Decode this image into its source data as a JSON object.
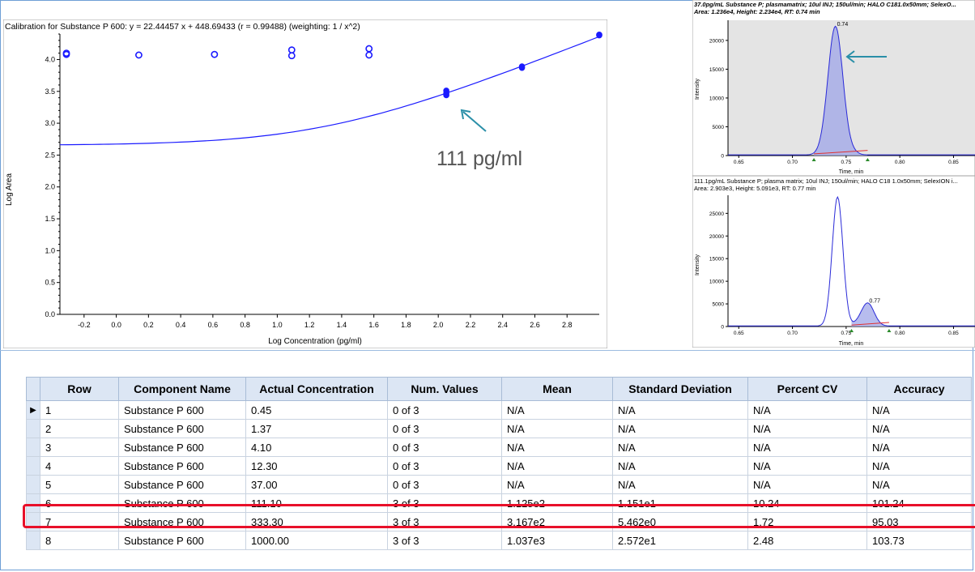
{
  "calibration": {
    "title": "Calibration for Substance P 600: y = 22.44457 x + 448.69433 (r = 0.99488)  (weighting: 1 / x^2)",
    "callout": "111 pg/ml"
  },
  "chromatogram_top": {
    "title": "37.0pg/mL Substance P; plasmamatrix; 10ul INJ; 150ul/min; HALO C181.0x50mm; SelexO...",
    "subtitle": "Area: 1.236e4, Height: 2.234e4, RT: 0.74 min",
    "peak_label": "0.74"
  },
  "chromatogram_bottom": {
    "title": "111.1pg/mL Substance P; plasma matrix; 10ul INJ; 150ul/min; HALO C18 1.0x50mm; SelexION i...",
    "subtitle": "Area: 2.903e3, Height: 5.091e3, RT: 0.77 min",
    "peak_label": "0.77"
  },
  "chart_data": [
    {
      "type": "scatter",
      "xlabel": "Log Concentration (pg/ml)",
      "ylabel": "Log Area",
      "xlim": [
        -0.35,
        3.0
      ],
      "ylim": [
        0.0,
        4.4
      ],
      "x_ticks": [
        -0.2,
        0.0,
        0.2,
        0.4,
        0.6,
        0.8,
        1.0,
        1.2,
        1.4,
        1.6,
        1.8,
        2.0,
        2.2,
        2.4,
        2.6,
        2.8
      ],
      "x_tick_labels": [
        "-0.2",
        "0.0",
        "0.2",
        "0.4",
        "0.6",
        "0.8",
        "1.0",
        "1.2",
        "1.4",
        "1.6",
        "1.8",
        "2.0",
        "2.2",
        "2.4",
        "2.6",
        "2.8"
      ],
      "y_ticks": [
        0.0,
        0.5,
        1.0,
        1.5,
        2.0,
        2.5,
        3.0,
        3.5,
        4.0
      ],
      "y_tick_labels": [
        "0.0",
        "0.5",
        "1.0",
        "1.5",
        "2.0",
        "2.5",
        "3.0",
        "3.5",
        "4.0"
      ],
      "excluded_points": [
        {
          "x": -0.35,
          "y": 4.1
        },
        {
          "x": -0.35,
          "y": 4.08
        },
        {
          "x": 0.14,
          "y": 4.07
        },
        {
          "x": 0.61,
          "y": 4.08
        },
        {
          "x": 1.09,
          "y": 4.15
        },
        {
          "x": 1.09,
          "y": 4.06
        },
        {
          "x": 1.57,
          "y": 4.17
        },
        {
          "x": 1.57,
          "y": 4.07
        }
      ],
      "included_points": [
        {
          "x": 2.05,
          "y": 3.44
        },
        {
          "x": 2.05,
          "y": 3.47
        },
        {
          "x": 2.05,
          "y": 3.51
        },
        {
          "x": 2.52,
          "y": 3.87
        },
        {
          "x": 2.52,
          "y": 3.89
        },
        {
          "x": 3.0,
          "y": 4.38
        },
        {
          "x": 3.0,
          "y": 4.39
        }
      ],
      "fit_curve": {
        "slope": 22.44457,
        "intercept": 448.69433
      },
      "annotation": {
        "text": "111 pg/ml",
        "x": 2.05,
        "y": 3.47
      }
    },
    {
      "type": "area",
      "title": "37.0pg/mL Substance P; plasmamatrix; 10ul INJ; 150ul/min; HALO C181.0x50mm; SelexO...",
      "xlabel": "Time, min",
      "ylabel": "Intensity",
      "xlim": [
        0.64,
        0.87
      ],
      "ylim": [
        0,
        23500
      ],
      "x_ticks": [
        0.65,
        0.7,
        0.75,
        0.8,
        0.85
      ],
      "x_tick_labels": [
        "0.65",
        "0.70",
        "0.75",
        "0.80",
        "0.85"
      ],
      "y_ticks": [
        0,
        5000,
        10000,
        15000,
        20000
      ],
      "y_tick_labels": [
        "0",
        "5000",
        "10000",
        "15000",
        "20000"
      ],
      "peaks": [
        {
          "rt": 0.74,
          "height": 22340,
          "width": 0.007
        }
      ],
      "integration": [
        0.72,
        0.77
      ]
    },
    {
      "type": "area",
      "title": "111.1pg/mL Substance P; plasma matrix; 10ul INJ; 150ul/min; HALO C18 1.0x50mm; SelexION i...",
      "xlabel": "Time, min",
      "ylabel": "Intensity",
      "xlim": [
        0.64,
        0.87
      ],
      "ylim": [
        0,
        29000
      ],
      "x_ticks": [
        0.65,
        0.7,
        0.75,
        0.8,
        0.85
      ],
      "x_tick_labels": [
        "0.65",
        "0.70",
        "0.75",
        "0.80",
        "0.85"
      ],
      "y_ticks": [
        0,
        5000,
        10000,
        15000,
        20000,
        25000
      ],
      "y_tick_labels": [
        "0",
        "5000",
        "10000",
        "15000",
        "20000",
        "25000"
      ],
      "peaks": [
        {
          "rt": 0.742,
          "height": 28500,
          "width": 0.005
        },
        {
          "rt": 0.77,
          "height": 5091,
          "width": 0.006
        }
      ],
      "integration": [
        0.755,
        0.79
      ]
    }
  ],
  "table": {
    "columns": [
      "Row",
      "Component Name",
      "Actual Concentration",
      "Num. Values",
      "Mean",
      "Standard Deviation",
      "Percent CV",
      "Accuracy"
    ],
    "rows": [
      [
        "1",
        "Substance P 600",
        "0.45",
        "0 of 3",
        "N/A",
        "N/A",
        "N/A",
        "N/A"
      ],
      [
        "2",
        "Substance P 600",
        "1.37",
        "0 of 3",
        "N/A",
        "N/A",
        "N/A",
        "N/A"
      ],
      [
        "3",
        "Substance P 600",
        "4.10",
        "0 of 3",
        "N/A",
        "N/A",
        "N/A",
        "N/A"
      ],
      [
        "4",
        "Substance P 600",
        "12.30",
        "0 of 3",
        "N/A",
        "N/A",
        "N/A",
        "N/A"
      ],
      [
        "5",
        "Substance P 600",
        "37.00",
        "0 of 3",
        "N/A",
        "N/A",
        "N/A",
        "N/A"
      ],
      [
        "6",
        "Substance P 600",
        "111.10",
        "3 of 3",
        "1.125e2",
        "1.151e1",
        "10.24",
        "101.24"
      ],
      [
        "7",
        "Substance P 600",
        "333.30",
        "3 of 3",
        "3.167e2",
        "5.462e0",
        "1.72",
        "95.03"
      ],
      [
        "8",
        "Substance P 600",
        "1000.00",
        "3 of 3",
        "1.037e3",
        "2.572e1",
        "2.48",
        "103.73"
      ]
    ],
    "current_row_marker": "▶",
    "highlighted_row": 6,
    "highlight_color": "#e8102a"
  },
  "colors": {
    "series": "#1a1aff",
    "arrow": "#2a8fa8",
    "chrom_fill": "#9fa6e8",
    "chrom_bg": "#e4e4e4",
    "baseline": "#e03030",
    "marker": "#2a8a2a",
    "header_bg": "#dce6f4"
  }
}
